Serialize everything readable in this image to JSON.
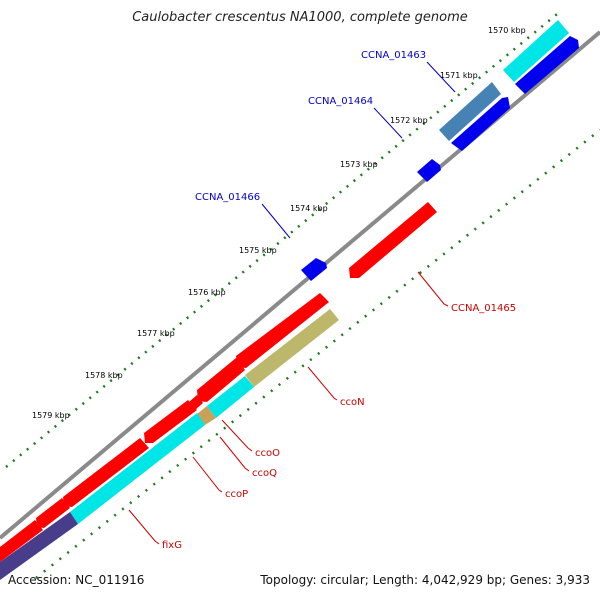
{
  "title": "Caulobacter crescentus NA1000, complete genome",
  "accession": "Accession: NC_011916",
  "topology": "Topology: circular; Length: 4,042,929 bp; Genes: 3,933",
  "colors": {
    "backbone": "#8a8a8a",
    "tick": "#1f7a1f",
    "forward_gene": "#0000ee",
    "reverse_gene": "#ff0000",
    "cyan_gene": "#00e5e5",
    "steelblue_gene": "#4682b4",
    "khaki_gene": "#bdb76b",
    "slateblue_gene": "#483d8b",
    "tan_gene": "#c8a25a",
    "label_forward": "#0000cc",
    "label_reverse": "#cc0000"
  },
  "ruler_labels": [
    "1570 kbp",
    "1571 kbp",
    "1572 kbp",
    "1573 kbp",
    "1574 kbp",
    "1575 kbp",
    "1576 kbp",
    "1577 kbp",
    "1578 kbp",
    "1579 kbp"
  ],
  "gene_labels": {
    "ccna_01463": "CCNA_01463",
    "ccna_01464": "CCNA_01464",
    "ccna_01466": "CCNA_01466",
    "ccna_01465": "CCNA_01465",
    "ccoN": "ccoN",
    "ccoO": "ccoO",
    "ccoQ": "ccoQ",
    "ccoP": "ccoP",
    "fixG": "fixG"
  }
}
